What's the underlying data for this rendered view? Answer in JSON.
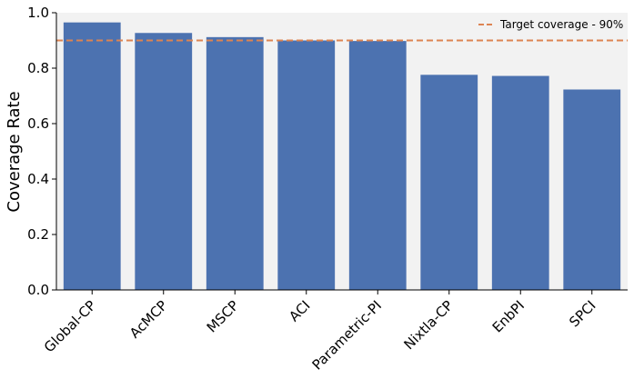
{
  "chart_data": {
    "type": "bar",
    "categories": [
      "Global-CP",
      "AcMCP",
      "MSCP",
      "ACI",
      "Parametric-PI",
      "Nixtla-CP",
      "EnbPI",
      "SPCI"
    ],
    "values": [
      0.965,
      0.927,
      0.912,
      0.9,
      0.898,
      0.776,
      0.772,
      0.723
    ],
    "ylabel": "Coverage Rate",
    "xlabel": "",
    "ylim": [
      0,
      1.0
    ],
    "yticks": [
      "0.0",
      "0.2",
      "0.4",
      "0.6",
      "0.8",
      "1.0"
    ],
    "reference_line": {
      "value": 0.9,
      "label": "Target coverage - 90%",
      "style": "dashed"
    },
    "legend_position": "top-right",
    "grid": false,
    "colors": {
      "bar": "#4c72b0",
      "reference": "#dd8452",
      "plot_background": "#f2f2f2"
    }
  }
}
